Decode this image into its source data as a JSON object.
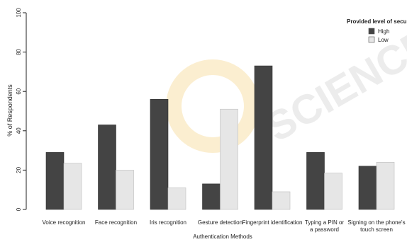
{
  "chart_data": {
    "type": "bar",
    "xlabel": "Authentication Methods",
    "ylabel": "% of Respondents",
    "ylim": [
      0,
      100
    ],
    "yticks": [
      0,
      20,
      40,
      60,
      80,
      100
    ],
    "categories": [
      [
        "Voice recognition"
      ],
      [
        "Face recognition"
      ],
      [
        "Iris recognition"
      ],
      [
        "Gesture detection"
      ],
      [
        "Fingerprint identification"
      ],
      [
        "Typing a PIN or",
        "a password"
      ],
      [
        "Signing on the phone's",
        "touch screen"
      ]
    ],
    "legend_title": "Provided level of security",
    "legend_position": "top-right",
    "series": [
      {
        "name": "High",
        "color": "#444444",
        "values": [
          29,
          43,
          56,
          13,
          73,
          29,
          22
        ]
      },
      {
        "name": "Low",
        "color": "#e6e6e6",
        "values": [
          23.5,
          20,
          11,
          51,
          9,
          18.5,
          24
        ]
      }
    ],
    "grid": false
  },
  "watermark": {
    "text": "SCIENCE",
    "color": "#e8e8e8"
  }
}
